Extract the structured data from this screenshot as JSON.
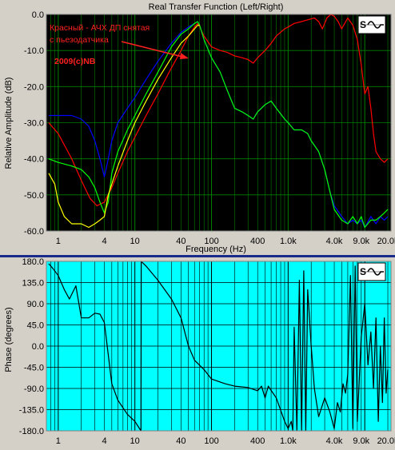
{
  "window": {
    "title": "Real Transfer Function (Left/Right)",
    "logo_icon": "sine-wave-logo-icon"
  },
  "chart_data": [
    {
      "type": "line",
      "title": "Real Transfer Function (Left/Right)",
      "xlabel": "Frequency (Hz)",
      "ylabel": "Relative Amplitude (dB)",
      "xscale": "log",
      "xlim": [
        0.7,
        22000
      ],
      "ylim": [
        -60,
        0
      ],
      "grid": true,
      "background": "#000000",
      "grid_color": "#008000",
      "xticks": [
        {
          "value": 1,
          "label": "1"
        },
        {
          "value": 4,
          "label": "4"
        },
        {
          "value": 10,
          "label": "10"
        },
        {
          "value": 40,
          "label": "40"
        },
        {
          "value": 100,
          "label": "100"
        },
        {
          "value": 400,
          "label": "400"
        },
        {
          "value": 1000,
          "label": "1.0k"
        },
        {
          "value": 4000,
          "label": "4.0k"
        },
        {
          "value": 9000,
          "label": "9.0k"
        },
        {
          "value": 20000,
          "label": "20.0k"
        }
      ],
      "yticks": [
        {
          "value": 0,
          "label": "0.0"
        },
        {
          "value": -10,
          "label": "-10.0"
        },
        {
          "value": -20,
          "label": "-20.0"
        },
        {
          "value": -30,
          "label": "-30.0"
        },
        {
          "value": -40,
          "label": "-40.0"
        },
        {
          "value": -50,
          "label": "-50.0"
        },
        {
          "value": -60,
          "label": "-60.0"
        }
      ],
      "annotations": [
        {
          "text": "Красный - АЧХ ДП снятая",
          "color": "#ff2020"
        },
        {
          "text": "с пьезодатчика",
          "color": "#ff2020"
        },
        {
          "text": "2009(c)NB",
          "color": "#ff2020"
        }
      ],
      "series": [
        {
          "color": "#ff0000",
          "x": [
            0.75,
            1,
            1.5,
            2,
            2.6,
            3.2,
            4,
            5,
            6,
            8,
            10,
            14,
            20,
            28,
            40,
            50,
            60,
            66,
            70,
            80,
            100,
            130,
            160,
            200,
            250,
            300,
            350,
            400,
            500,
            600,
            700,
            900,
            1000,
            1200,
            1500,
            1800,
            2200,
            2500,
            2800,
            3200,
            3600,
            4000,
            4500,
            5000,
            6000,
            7000,
            8000,
            9000,
            10000,
            11000,
            12000,
            13000,
            14000,
            16000,
            18000,
            20000
          ],
          "y": [
            -30,
            -33,
            -40,
            -46,
            -51,
            -53,
            -52,
            -48,
            -44,
            -38,
            -34,
            -28,
            -22,
            -16,
            -10,
            -6,
            -3.5,
            -2.5,
            -3.5,
            -6,
            -9,
            -10,
            -10.5,
            -11.5,
            -12,
            -12.5,
            -13.5,
            -12,
            -10,
            -8,
            -6,
            -4,
            -3.5,
            -2.5,
            -2,
            -1.5,
            -1,
            -2,
            -4,
            -1,
            0,
            -0.5,
            -2,
            -4,
            -1,
            -3,
            -7,
            -14,
            -22,
            -20,
            -26,
            -33,
            -38,
            -40,
            -41,
            -40
          ]
        },
        {
          "color": "#0000ff",
          "x": [
            0.75,
            1,
            1.5,
            2,
            2.5,
            3,
            3.5,
            4,
            4.5,
            5,
            6,
            8,
            10,
            14,
            20,
            30,
            40,
            50,
            60,
            66,
            70,
            80,
            100,
            130,
            160,
            200,
            250,
            300,
            350,
            400,
            500,
            600,
            700,
            900,
            1000,
            1200,
            1500,
            1800,
            2000,
            2500,
            3000,
            3500,
            4000,
            5000,
            6000,
            7000,
            8000,
            9000,
            10000,
            12000,
            14000,
            16000,
            18000,
            20000
          ],
          "y": [
            -28,
            -28,
            -28,
            -29,
            -31,
            -35,
            -40,
            -45,
            -40,
            -35,
            -30,
            -26,
            -23,
            -18,
            -13,
            -8,
            -5,
            -3.5,
            -2.5,
            -2,
            -3,
            -7,
            -12,
            -16,
            -21,
            -26,
            -27,
            -28,
            -29,
            -27,
            -25,
            -24,
            -26,
            -29,
            -30,
            -32,
            -32,
            -33,
            -35,
            -38,
            -43,
            -49,
            -53,
            -56,
            -58,
            -57,
            -58,
            -57,
            -59,
            -56,
            -58,
            -56,
            -57,
            -56
          ]
        },
        {
          "color": "#00ff00",
          "x": [
            0.75,
            1,
            1.5,
            2,
            2.5,
            3,
            3.5,
            4,
            4.5,
            5,
            6,
            8,
            10,
            14,
            20,
            30,
            40,
            50,
            60,
            66,
            70,
            80,
            100,
            130,
            160,
            200,
            250,
            300,
            350,
            400,
            500,
            600,
            700,
            900,
            1000,
            1200,
            1500,
            1800,
            2000,
            2500,
            3000,
            3500,
            4000,
            5000,
            6000,
            7000,
            8000,
            9000,
            10000,
            12000,
            14000,
            16000,
            18000,
            20000
          ],
          "y": [
            -40,
            -41,
            -42,
            -43,
            -45,
            -48,
            -52,
            -55,
            -52,
            -44,
            -38,
            -32,
            -28,
            -22,
            -16,
            -9,
            -5.5,
            -4,
            -2.5,
            -2,
            -3,
            -7,
            -12,
            -16,
            -21,
            -26,
            -27,
            -28,
            -29,
            -27,
            -25,
            -24,
            -26,
            -29,
            -30,
            -32,
            -32,
            -33,
            -35,
            -38,
            -43,
            -49,
            -54,
            -57,
            -58,
            -56,
            -58,
            -56,
            -59,
            -57,
            -57,
            -56,
            -55,
            -54
          ]
        },
        {
          "color": "#ffff00",
          "x": [
            0.75,
            0.9,
            1,
            1.2,
            1.5,
            2,
            2.5,
            3,
            3.5,
            4,
            4.5,
            5,
            6,
            8,
            10,
            14,
            20,
            30,
            40,
            50,
            60,
            66,
            70
          ],
          "y": [
            -44,
            -47,
            -52,
            -56,
            -58,
            -58,
            -59,
            -58,
            -57,
            -56,
            -50,
            -47,
            -42,
            -35,
            -30,
            -24,
            -18,
            -12,
            -8,
            -6,
            -4,
            -3,
            -3
          ]
        }
      ]
    },
    {
      "type": "line",
      "xlabel": "",
      "ylabel": "Phase (degrees)",
      "xscale": "log",
      "xlim": [
        0.7,
        22000
      ],
      "ylim": [
        -180,
        180
      ],
      "grid": true,
      "background": "#00ffff",
      "grid_color": "#000000",
      "xticks": [
        {
          "value": 1,
          "label": "1"
        },
        {
          "value": 4,
          "label": "4"
        },
        {
          "value": 10,
          "label": "10"
        },
        {
          "value": 40,
          "label": "40"
        },
        {
          "value": 100,
          "label": "100"
        },
        {
          "value": 400,
          "label": "400"
        },
        {
          "value": 1000,
          "label": "1.0k"
        },
        {
          "value": 4000,
          "label": "4.0k"
        },
        {
          "value": 9000,
          "label": "9.0k"
        },
        {
          "value": 20000,
          "label": "20.0k"
        }
      ],
      "yticks": [
        {
          "value": 180,
          "label": "180.0"
        },
        {
          "value": 135,
          "label": "135.0"
        },
        {
          "value": 90,
          "label": "90.0"
        },
        {
          "value": 45,
          "label": "45.0"
        },
        {
          "value": 0,
          "label": "0.0"
        },
        {
          "value": -45,
          "label": "-45.0"
        },
        {
          "value": -90,
          "label": "-90.0"
        },
        {
          "value": -135,
          "label": "-135.0"
        },
        {
          "value": -180,
          "label": "-180.0"
        }
      ],
      "series": [
        {
          "color": "#000000",
          "x": [
            0.75,
            0.85,
            1,
            1.2,
            1.4,
            1.7,
            2,
            2.5,
            3,
            3.5,
            4,
            5,
            6,
            8,
            10,
            12,
            12.1,
            14,
            20,
            30,
            40,
            50,
            60,
            80,
            100,
            150,
            200,
            300,
            400,
            450,
            500,
            550,
            700,
            900,
            1000,
            1100,
            1150,
            1200,
            1300,
            1400,
            1500,
            1600,
            1700,
            1800,
            2000,
            2200,
            2500,
            3000,
            3500,
            4000,
            4400,
            4800,
            5200,
            5600,
            6000,
            6500,
            7000,
            7500,
            8000,
            9000,
            10000,
            11000,
            12000,
            13000,
            14000,
            15000,
            16000,
            17000,
            18000,
            19000,
            20000
          ],
          "y": [
            175,
            165,
            150,
            120,
            100,
            128,
            60,
            60,
            70,
            68,
            50,
            -80,
            -115,
            -145,
            -160,
            -180,
            180,
            170,
            140,
            100,
            60,
            0,
            -30,
            -50,
            -70,
            -80,
            -85,
            -88,
            -95,
            -85,
            -110,
            -85,
            -110,
            -160,
            -175,
            -160,
            -180,
            40,
            -180,
            140,
            -180,
            160,
            -180,
            120,
            0,
            -90,
            -150,
            -110,
            -140,
            -175,
            -120,
            -140,
            -80,
            -100,
            -60,
            150,
            -175,
            170,
            -160,
            20,
            90,
            -40,
            30,
            -90,
            60,
            -160,
            0,
            -120,
            60,
            -100,
            -50
          ]
        }
      ]
    }
  ]
}
